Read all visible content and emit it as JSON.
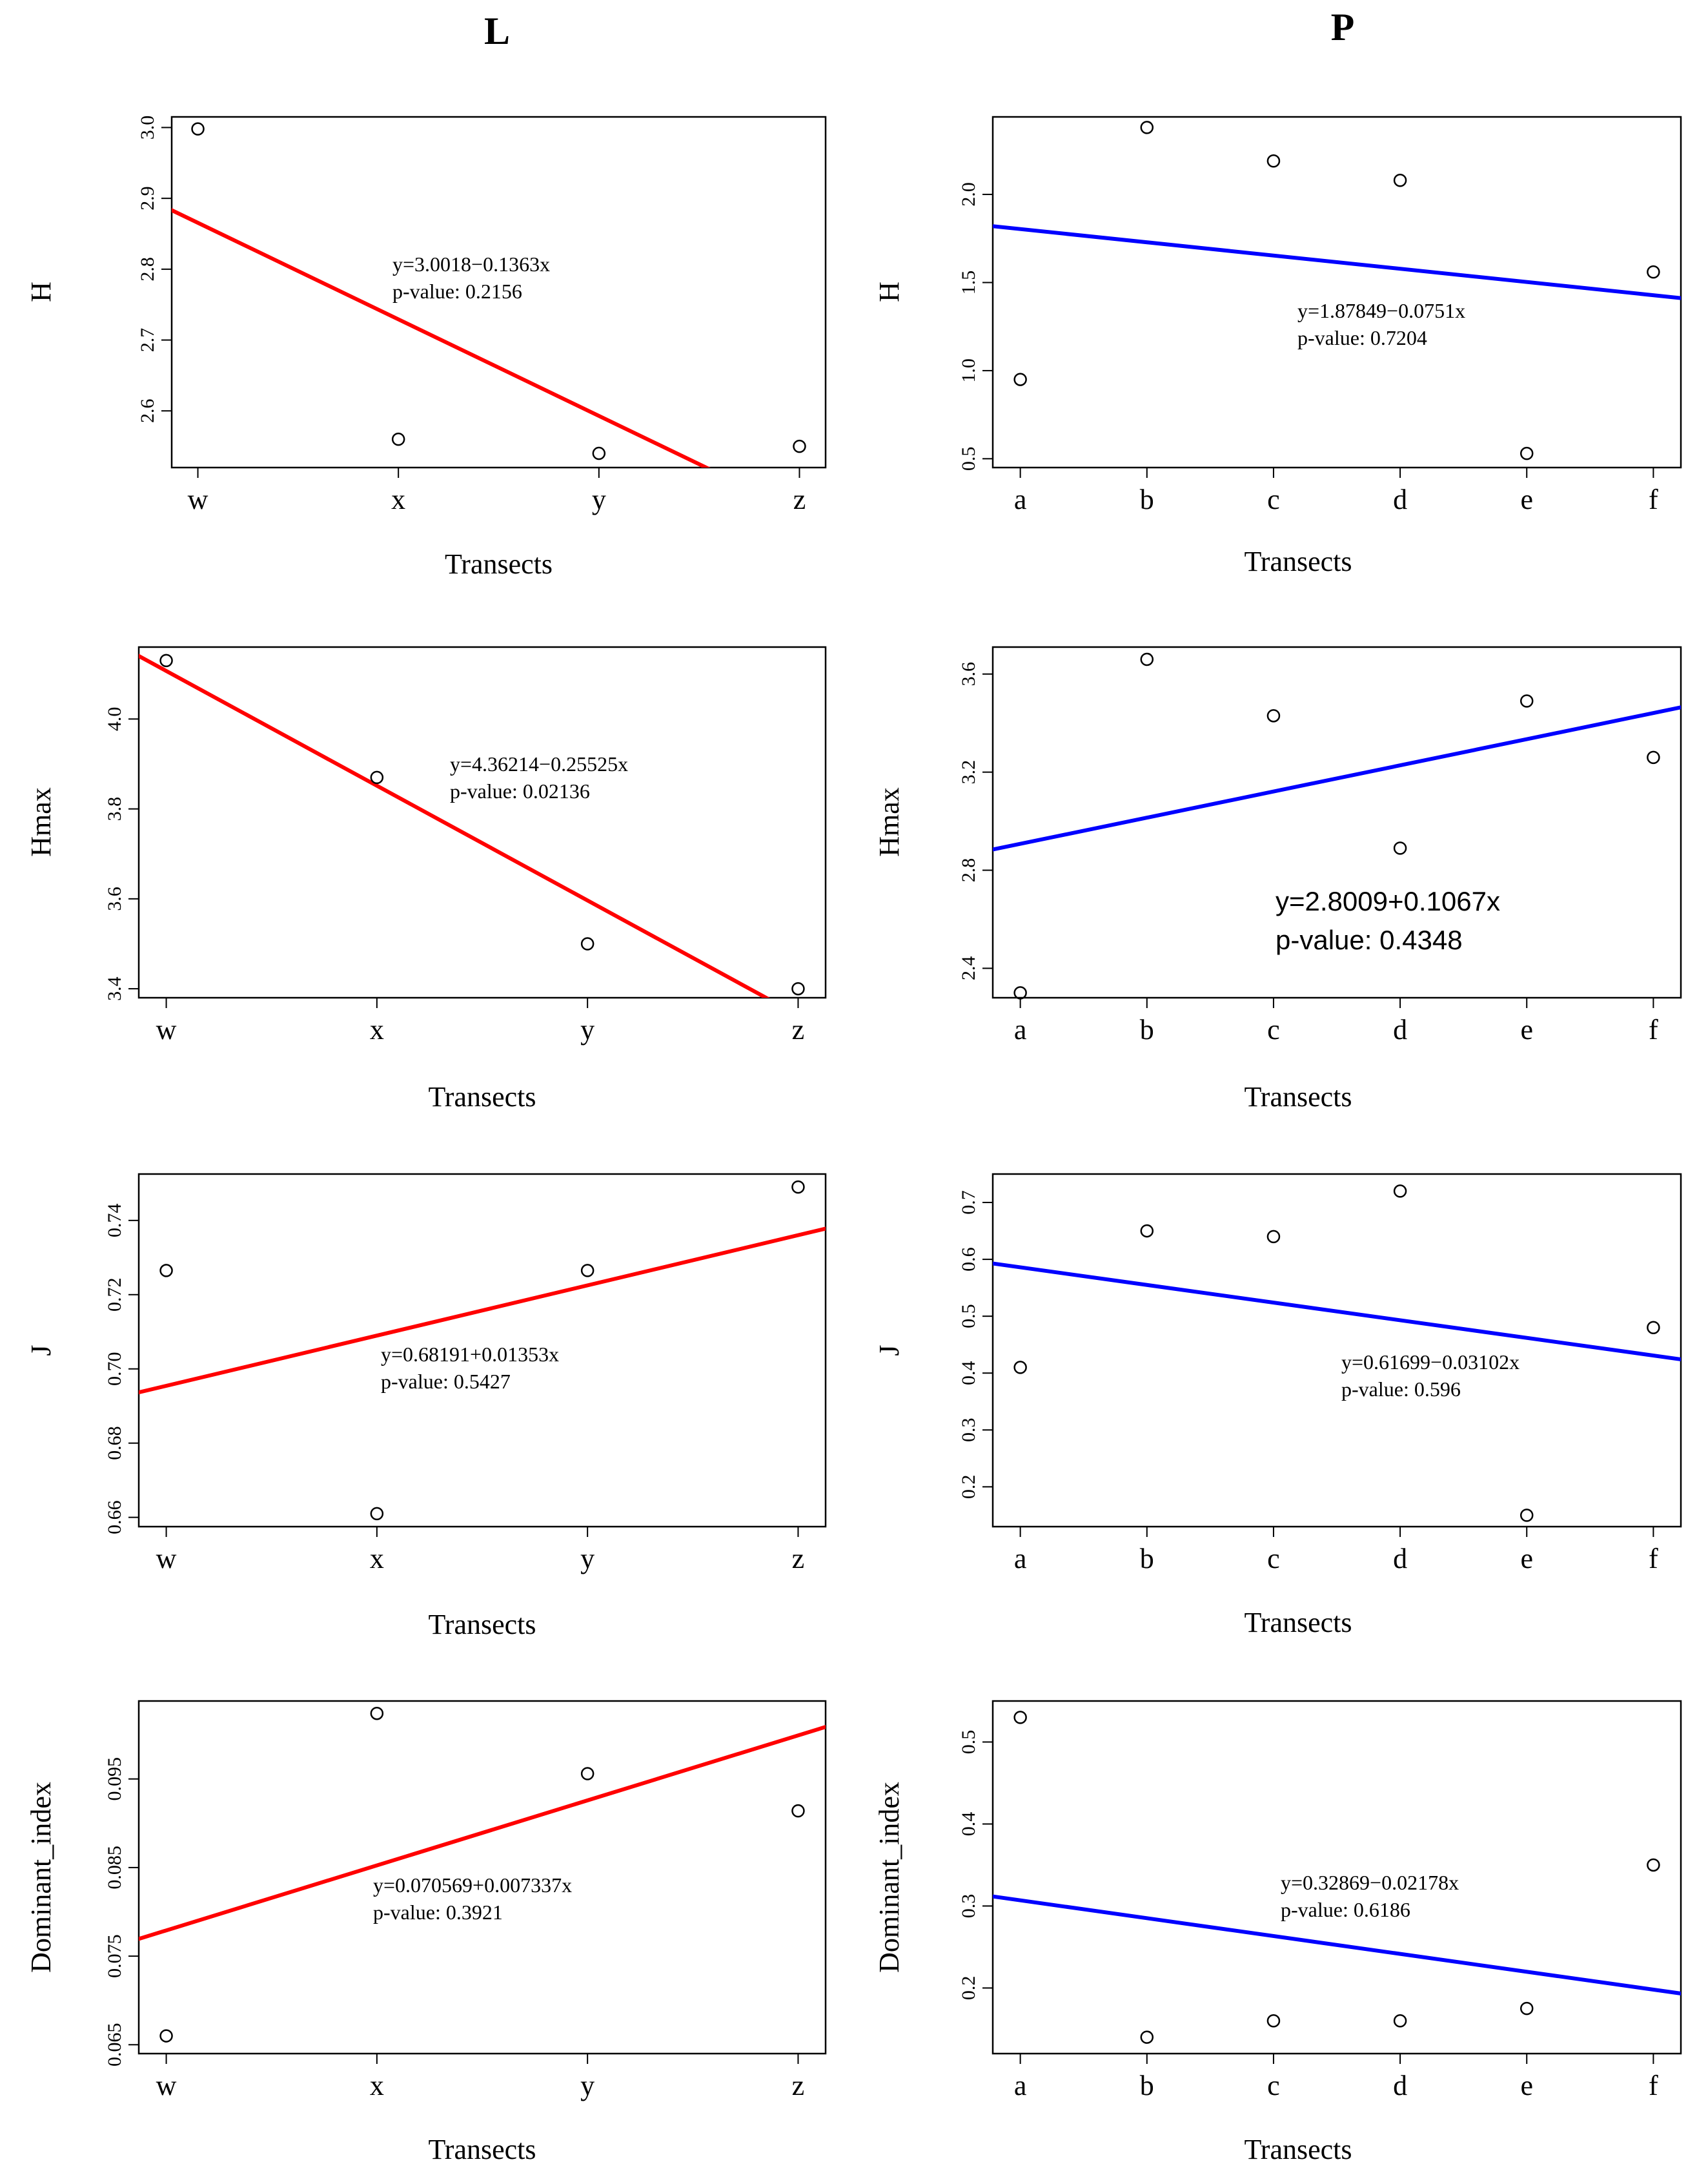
{
  "column_titles": [
    "L",
    "P"
  ],
  "chart_data": [
    {
      "type": "scatter",
      "column": "L",
      "ylabel": "H",
      "xlabel": "Transects",
      "categories": [
        "w",
        "x",
        "y",
        "z"
      ],
      "values": [
        2.998,
        2.56,
        2.54,
        2.55
      ],
      "ylim": [
        2.52,
        3.015
      ],
      "yticks": [
        "2.6",
        "2.7",
        "2.8",
        "2.9",
        "3.0"
      ],
      "fit": {
        "intercept": 3.0018,
        "slope": -0.1363,
        "color": "#ff0000"
      },
      "equation": "y=3.0018−0.1363x",
      "pvalue": "p-value: 0.2156"
    },
    {
      "type": "scatter",
      "column": "P",
      "ylabel": "H",
      "xlabel": "Transects",
      "categories": [
        "a",
        "b",
        "c",
        "d",
        "e",
        "f"
      ],
      "values": [
        0.95,
        2.38,
        2.19,
        2.08,
        0.53,
        1.56
      ],
      "ylim": [
        0.45,
        2.44
      ],
      "yticks": [
        "0.5",
        "1.0",
        "1.5",
        "2.0"
      ],
      "fit": {
        "intercept": 1.87849,
        "slope": -0.0751,
        "color": "#0000ff"
      },
      "equation": "y=1.87849−0.0751x",
      "pvalue": "p-value: 0.7204"
    },
    {
      "type": "scatter",
      "column": "L",
      "ylabel": "Hmax",
      "xlabel": "Transects",
      "categories": [
        "w",
        "x",
        "y",
        "z"
      ],
      "values": [
        4.13,
        3.87,
        3.5,
        3.4
      ],
      "ylim": [
        3.38,
        4.16
      ],
      "yticks": [
        "3.4",
        "3.6",
        "3.8",
        "4.0"
      ],
      "fit": {
        "intercept": 4.36214,
        "slope": -0.25525,
        "color": "#ff0000"
      },
      "equation": "y=4.36214−0.25525x",
      "pvalue": "p-value: 0.02136"
    },
    {
      "type": "scatter",
      "column": "P",
      "ylabel": "Hmax",
      "xlabel": "Transects",
      "categories": [
        "a",
        "b",
        "c",
        "d",
        "e",
        "f"
      ],
      "values": [
        2.3,
        3.66,
        3.43,
        2.89,
        3.49,
        3.26
      ],
      "ylim": [
        2.28,
        3.71
      ],
      "yticks": [
        "2.4",
        "2.8",
        "3.2",
        "3.6"
      ],
      "fit": {
        "intercept": 2.8009,
        "slope": 0.1067,
        "color": "#0000ff"
      },
      "equation": "y=2.8009+0.1067x",
      "pvalue": "p-value: 0.4348",
      "big_label": true
    },
    {
      "type": "scatter",
      "column": "L",
      "ylabel": "J",
      "xlabel": "Transects",
      "categories": [
        "w",
        "x",
        "y",
        "z"
      ],
      "values": [
        0.7265,
        0.661,
        0.7265,
        0.749
      ],
      "ylim": [
        0.6575,
        0.7525
      ],
      "yticks": [
        "0.66",
        "0.68",
        "0.70",
        "0.72",
        "0.74"
      ],
      "fit": {
        "intercept": 0.68191,
        "slope": 0.01353,
        "color": "#ff0000"
      },
      "equation": "y=0.68191+0.01353x",
      "pvalue": "p-value: 0.5427"
    },
    {
      "type": "scatter",
      "column": "P",
      "ylabel": "J",
      "xlabel": "Transects",
      "categories": [
        "a",
        "b",
        "c",
        "d",
        "e",
        "f"
      ],
      "values": [
        0.41,
        0.65,
        0.64,
        0.72,
        0.15,
        0.48
      ],
      "ylim": [
        0.13,
        0.75
      ],
      "yticks": [
        "0.2",
        "0.3",
        "0.4",
        "0.5",
        "0.6",
        "0.7"
      ],
      "fit": {
        "intercept": 0.61699,
        "slope": -0.03102,
        "color": "#0000ff"
      },
      "equation": "y=0.61699−0.03102x",
      "pvalue": "p-value: 0.596"
    },
    {
      "type": "scatter",
      "column": "L",
      "ylabel": "Dominant_index",
      "xlabel": "Transects",
      "categories": [
        "w",
        "x",
        "y",
        "z"
      ],
      "values": [
        0.066,
        0.1024,
        0.0956,
        0.0914
      ],
      "ylim": [
        0.064,
        0.1038
      ],
      "yticks": [
        "0.065",
        "0.075",
        "0.085",
        "0.095"
      ],
      "fit": {
        "intercept": 0.070569,
        "slope": 0.007337,
        "color": "#ff0000"
      },
      "equation": "y=0.070569+0.007337x",
      "pvalue": "p-value: 0.3921"
    },
    {
      "type": "scatter",
      "column": "P",
      "ylabel": "Dominant_index",
      "xlabel": "Transects",
      "categories": [
        "a",
        "b",
        "c",
        "d",
        "e",
        "f"
      ],
      "values": [
        0.53,
        0.14,
        0.16,
        0.16,
        0.175,
        0.35
      ],
      "ylim": [
        0.12,
        0.55
      ],
      "yticks": [
        "0.2",
        "0.3",
        "0.4",
        "0.5"
      ],
      "fit": {
        "intercept": 0.32869,
        "slope": -0.02178,
        "color": "#0000ff"
      },
      "equation": "y=0.32869−0.02178x",
      "pvalue": "p-value: 0.6186"
    }
  ]
}
